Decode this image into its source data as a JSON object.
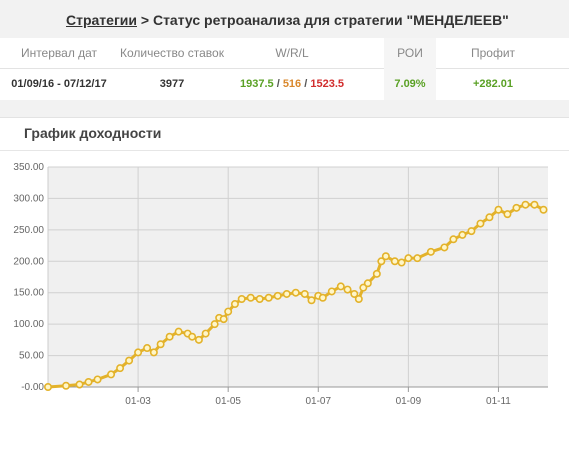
{
  "breadcrumb": {
    "link": "Стратегии",
    "text": " > Статус ретроанализа для стратегии \"МЕНДЕЛЕЕВ\""
  },
  "stats": {
    "headers": {
      "interval": "Интервал дат",
      "bets": "Количество ставок",
      "wrl": "W/R/L",
      "roi": "РОИ",
      "profit": "Профит"
    },
    "values": {
      "interval": "01/09/16 - 07/12/17",
      "bets": "3977",
      "wins": "1937.5",
      "returns": "516",
      "losses": "1523.5",
      "separator": " / ",
      "roi": "7.09%",
      "profit": "+282.01"
    }
  },
  "panel": {
    "title": "График доходности"
  },
  "colors": {
    "line": "#e3b22a",
    "point_fill": "#fff6c8",
    "grid": "#d0d0d0",
    "plot_bg": "#f0f0f0",
    "win": "#5aa125",
    "return": "#d9872b",
    "loss": "#d12c2c"
  },
  "chart_data": {
    "type": "line",
    "title": "График доходности",
    "x_tick_labels": [
      "01-03",
      "01-05",
      "01-07",
      "01-09",
      "01-11"
    ],
    "y_tick_labels": [
      "-0.00",
      "50.00",
      "100.00",
      "150.00",
      "200.00",
      "250.00",
      "300.00",
      "350.00"
    ],
    "ylim": [
      0,
      350
    ],
    "x_range_months": [
      1,
      12.1
    ],
    "grid": true,
    "legend": "none",
    "series": [
      {
        "x": [
          1.0,
          1.4,
          1.7,
          1.9,
          2.1,
          2.4,
          2.6,
          2.8,
          3.0,
          3.2,
          3.35,
          3.5,
          3.7,
          3.9,
          4.1,
          4.2,
          4.35,
          4.5,
          4.7,
          4.8,
          4.9,
          5.0,
          5.15,
          5.3,
          5.5,
          5.7,
          5.9,
          6.1,
          6.3,
          6.5,
          6.7,
          6.85,
          7.0,
          7.1,
          7.3,
          7.5,
          7.65,
          7.8,
          7.9,
          8.0,
          8.1,
          8.3,
          8.4,
          8.5,
          8.7,
          8.85,
          9.0,
          9.2,
          9.5,
          9.8,
          10.0,
          10.2,
          10.4,
          10.6,
          10.8,
          11.0,
          11.2,
          11.4,
          11.6,
          11.8,
          12.0
        ],
        "y": [
          0,
          2,
          4,
          8,
          12,
          20,
          30,
          42,
          55,
          62,
          55,
          68,
          80,
          88,
          85,
          80,
          75,
          85,
          100,
          110,
          108,
          120,
          132,
          140,
          142,
          140,
          142,
          145,
          148,
          150,
          148,
          138,
          145,
          142,
          152,
          160,
          155,
          148,
          140,
          158,
          165,
          180,
          200,
          208,
          200,
          198,
          205,
          205,
          215,
          222,
          235,
          242,
          248,
          260,
          270,
          282,
          275,
          285,
          290,
          290,
          282
        ]
      }
    ]
  }
}
